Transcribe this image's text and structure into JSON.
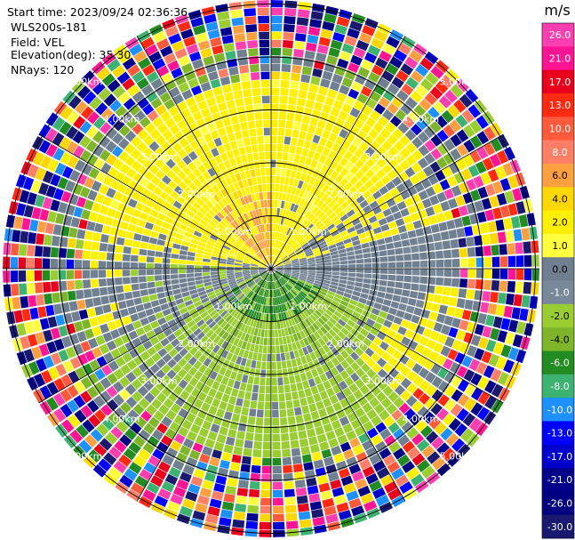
{
  "chart_data": {
    "type": "ppi",
    "header": {
      "start_time": "Start time: 2023/09/24 02:36:36",
      "site": "WLS200s-181",
      "field": "Field: VEL",
      "elevation": "Elevation(deg): 35.30",
      "nrays": "NRays: 120"
    },
    "range_rings_km": [
      1.0,
      2.0,
      3.0,
      4.0,
      5.0
    ],
    "max_range_km": 5.6,
    "n_rays": 120,
    "ring_labels": [
      "1.00km",
      "2.00km",
      "3.00km",
      "4.00km",
      "5.00km"
    ],
    "colorbar": {
      "unit": "m/s",
      "ticks": [
        "26.0",
        "21.0",
        "17.0",
        "13.0",
        "10.0",
        "8.0",
        "6.0",
        "4.0",
        "2.0",
        "1.0",
        "0.0",
        "-1.0",
        "-2.0",
        "-4.0",
        "-6.0",
        "-8.0",
        "-10.0",
        "-13.0",
        "-17.0",
        "-21.0",
        "-26.0",
        "-30.0"
      ],
      "colors": [
        "#ff3fb0",
        "#ff1493",
        "#e8001c",
        "#ff2a10",
        "#ff5a3c",
        "#ff7f66",
        "#ffa040",
        "#ffd700",
        "#fff000",
        "#ffff40",
        "#708090",
        "#778899",
        "#9acd32",
        "#7fb52a",
        "#228b22",
        "#3cb371",
        "#1e90ff",
        "#0000ff",
        "#0000cd",
        "#00008b",
        "#000080",
        "#191970"
      ]
    }
  }
}
